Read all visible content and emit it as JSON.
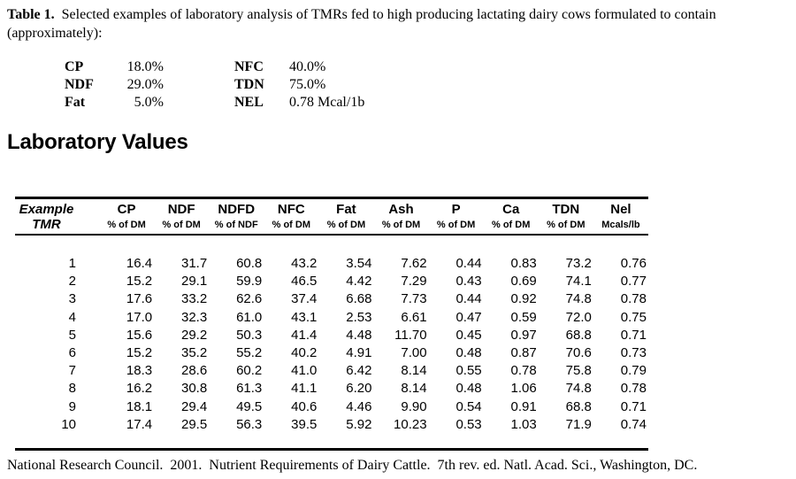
{
  "caption": {
    "label": "Table 1.",
    "text": "  Selected examples of laboratory analysis of TMRs fed to high producing lactating dairy cows formulated to contain (approximately):"
  },
  "formulation": {
    "rows": [
      {
        "label1": "CP",
        "value1": "18.0%",
        "label2": "NFC",
        "value2": "40.0%"
      },
      {
        "label1": "NDF",
        "value1": "29.0%",
        "label2": "TDN",
        "value2": "75.0%"
      },
      {
        "label1": "Fat",
        "value1": "5.0%",
        "label2": "NEL",
        "value2": "0.78 Mcal/1b"
      }
    ]
  },
  "section_heading": "Laboratory Values",
  "table": {
    "columns": [
      {
        "name": "Example",
        "unit": "TMR"
      },
      {
        "name": "CP",
        "unit": "% of DM"
      },
      {
        "name": "NDF",
        "unit": "% of DM"
      },
      {
        "name": "NDFD",
        "unit": "% of NDF"
      },
      {
        "name": "NFC",
        "unit": "% of DM"
      },
      {
        "name": "Fat",
        "unit": "% of DM"
      },
      {
        "name": "Ash",
        "unit": "% of DM"
      },
      {
        "name": "P",
        "unit": "% of DM"
      },
      {
        "name": "Ca",
        "unit": "% of DM"
      },
      {
        "name": "TDN",
        "unit": "% of DM"
      },
      {
        "name": "Nel",
        "unit": "Mcals/lb"
      }
    ],
    "rows": [
      [
        "1",
        "16.4",
        "31.7",
        "60.8",
        "43.2",
        "3.54",
        "7.62",
        "0.44",
        "0.83",
        "73.2",
        "0.76"
      ],
      [
        "2",
        "15.2",
        "29.1",
        "59.9",
        "46.5",
        "4.42",
        "7.29",
        "0.43",
        "0.69",
        "74.1",
        "0.77"
      ],
      [
        "3",
        "17.6",
        "33.2",
        "62.6",
        "37.4",
        "6.68",
        "7.73",
        "0.44",
        "0.92",
        "74.8",
        "0.78"
      ],
      [
        "4",
        "17.0",
        "32.3",
        "61.0",
        "43.1",
        "2.53",
        "6.61",
        "0.47",
        "0.59",
        "72.0",
        "0.75"
      ],
      [
        "5",
        "15.6",
        "29.2",
        "50.3",
        "41.4",
        "4.48",
        "11.70",
        "0.45",
        "0.97",
        "68.8",
        "0.71"
      ],
      [
        "6",
        "15.2",
        "35.2",
        "55.2",
        "40.2",
        "4.91",
        "7.00",
        "0.48",
        "0.87",
        "70.6",
        "0.73"
      ],
      [
        "7",
        "18.3",
        "28.6",
        "60.2",
        "41.0",
        "6.42",
        "8.14",
        "0.55",
        "0.78",
        "75.8",
        "0.79"
      ],
      [
        "8",
        "16.2",
        "30.8",
        "61.3",
        "41.1",
        "6.20",
        "8.14",
        "0.48",
        "1.06",
        "74.8",
        "0.78"
      ],
      [
        "9",
        "18.1",
        "29.4",
        "49.5",
        "40.6",
        "4.46",
        "9.90",
        "0.54",
        "0.91",
        "68.8",
        "0.71"
      ],
      [
        "10",
        "17.4",
        "29.5",
        "56.3",
        "39.5",
        "5.92",
        "10.23",
        "0.53",
        "1.03",
        "71.9",
        "0.74"
      ]
    ]
  },
  "footer": "National Research Council.  2001.  Nutrient Requirements of Dairy Cattle.  7th rev. ed. Natl. Acad. Sci., Washington, DC."
}
